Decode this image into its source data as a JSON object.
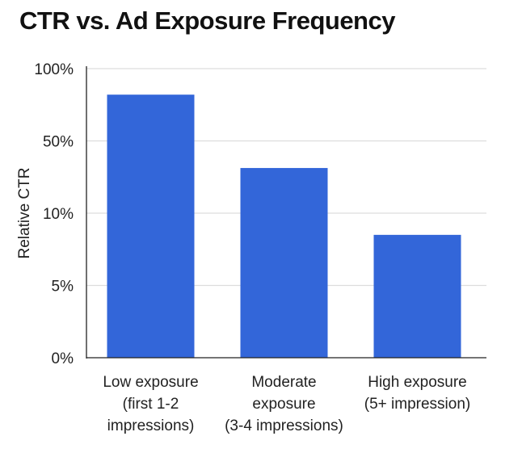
{
  "chart_data": {
    "type": "bar",
    "title": "CTR vs. Ad Exposure Frequency",
    "xlabel": "",
    "ylabel": "Relative CTR",
    "y_ticks": [
      "0%",
      "5%",
      "10%",
      "50%",
      "100%"
    ],
    "y_tick_values": [
      0,
      5,
      10,
      50,
      100
    ],
    "y_scale": "non-linear (equally spaced ticks)",
    "ylim": [
      0,
      100
    ],
    "grid": true,
    "categories": [
      [
        "Low exposure",
        "(first 1-2",
        "impressions)"
      ],
      [
        "Moderate",
        "exposure",
        "(3-4 impressions)"
      ],
      [
        "High exposure",
        "(5+ impression)"
      ]
    ],
    "values": [
      82,
      35,
      8.5
    ],
    "colors": {
      "bar": "#3366d9",
      "grid": "#dddddd",
      "axis": "#222222"
    }
  }
}
